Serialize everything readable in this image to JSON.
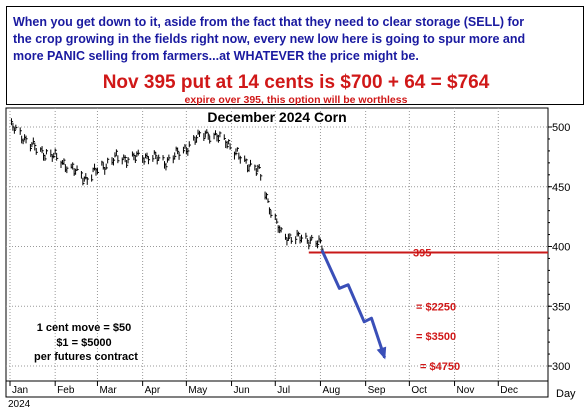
{
  "header": {
    "intro_lines": [
      "When you get down to it, aside from the fact that they need to clear storage (SELL) for",
      "the crop growing in the fields right now, every new low here is going to spur more and",
      "more PANIC selling from farmers...at WHATEVER the price might be."
    ],
    "headline": "Nov 395 put at 14 cents is $700 + 64 = $764",
    "subline": "expire over 395, this option will be worthless"
  },
  "chart_data": {
    "type": "bar",
    "subtype": "ohlc",
    "title": "December 2024 Corn",
    "x_ticks": [
      "Jan",
      "Feb",
      "Mar",
      "Apr",
      "May",
      "Jun",
      "Jul",
      "Aug",
      "Sep",
      "Oct",
      "Nov",
      "Dec"
    ],
    "x_year": "2024",
    "x_unit_label": "Day",
    "ylim": [
      290,
      510
    ],
    "y_ticks": [
      300,
      350,
      400,
      450,
      500
    ],
    "grid": true,
    "price_segments": [
      {
        "date": "2024-01-02",
        "close": 500
      },
      {
        "date": "2024-01-10",
        "close": 492
      },
      {
        "date": "2024-01-18",
        "close": 482
      },
      {
        "date": "2024-01-26",
        "close": 478
      },
      {
        "date": "2024-02-05",
        "close": 472
      },
      {
        "date": "2024-02-15",
        "close": 462
      },
      {
        "date": "2024-02-23",
        "close": 457
      },
      {
        "date": "2024-03-04",
        "close": 467
      },
      {
        "date": "2024-03-14",
        "close": 474
      },
      {
        "date": "2024-03-26",
        "close": 474
      },
      {
        "date": "2024-04-05",
        "close": 476
      },
      {
        "date": "2024-04-16",
        "close": 471
      },
      {
        "date": "2024-04-26",
        "close": 478
      },
      {
        "date": "2024-05-06",
        "close": 488
      },
      {
        "date": "2024-05-14",
        "close": 496
      },
      {
        "date": "2024-05-20",
        "close": 491
      },
      {
        "date": "2024-05-28",
        "close": 490
      },
      {
        "date": "2024-06-04",
        "close": 477
      },
      {
        "date": "2024-06-12",
        "close": 470
      },
      {
        "date": "2024-06-20",
        "close": 462
      },
      {
        "date": "2024-06-28",
        "close": 430
      },
      {
        "date": "2024-07-05",
        "close": 410
      },
      {
        "date": "2024-07-15",
        "close": 407
      },
      {
        "date": "2024-07-25",
        "close": 406
      },
      {
        "date": "2024-07-31",
        "close": 402
      },
      {
        "date": "2024-08-02",
        "close": 400
      }
    ],
    "projection": [
      {
        "date": "2024-08-02",
        "value": 397
      },
      {
        "date": "2024-08-14",
        "value": 365
      },
      {
        "date": "2024-08-20",
        "value": 368
      },
      {
        "date": "2024-08-31",
        "value": 337
      },
      {
        "date": "2024-09-05",
        "value": 340
      },
      {
        "date": "2024-09-14",
        "value": 307
      }
    ],
    "strike_line": {
      "value": 395,
      "label": "395",
      "start_date": "2024-07-24"
    },
    "target_labels": [
      {
        "value": 350,
        "label": "= $2250"
      },
      {
        "value": 325,
        "label": "= $3500"
      },
      {
        "value": 300,
        "label": "= $4750"
      }
    ],
    "note_lines": [
      "1 cent move = $50",
      "$1 = $5000",
      "per futures contract"
    ],
    "colors": {
      "price": "#000000",
      "strike": "#c81818",
      "projection": "#3a4fb8",
      "grid": "#9a9a9a",
      "labels": "#d01818",
      "intro": "#1a1aa0"
    }
  }
}
